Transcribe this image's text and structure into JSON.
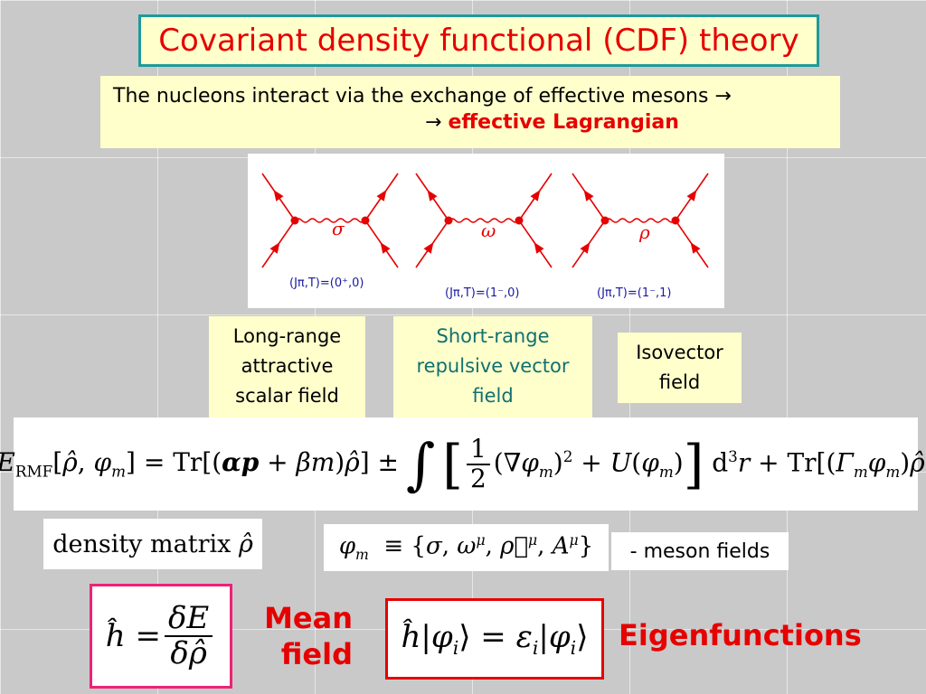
{
  "title": "Covariant density functional (CDF) theory",
  "intro": {
    "line1": "The nucleons interact via the exchange of effective mesons →",
    "arrow": "→",
    "line2_emph": "effective Lagrangian"
  },
  "diagram": {
    "mesons": [
      {
        "symbol": "σ",
        "quantum": "(Jπ,T)=(0⁺,0)"
      },
      {
        "symbol": "ω",
        "quantum": "(Jπ,T)=(1⁻,0)"
      },
      {
        "symbol": "ρ",
        "quantum": "(Jπ,T)=(1⁻,1)"
      }
    ],
    "line_color": "#e60000",
    "label_color": "#1a1aa0"
  },
  "labels": {
    "sigma": [
      "Long-range",
      "attractive",
      "scalar field"
    ],
    "omega": [
      "Short-range",
      "repulsive vector",
      "field"
    ],
    "rho": [
      "Isovector",
      "field"
    ]
  },
  "density_matrix": "density matrix",
  "meson_fields_label": "- meson fields",
  "mean_field": [
    "Mean",
    "field"
  ],
  "eigenfunctions": "Eigenfunctions",
  "colors": {
    "title": "#e60000",
    "title_border": "#1f9a9a",
    "box_fill": "#ffffcc",
    "teal_text": "#107070",
    "pink_border": "#ee2277",
    "red_border": "#e60000"
  }
}
